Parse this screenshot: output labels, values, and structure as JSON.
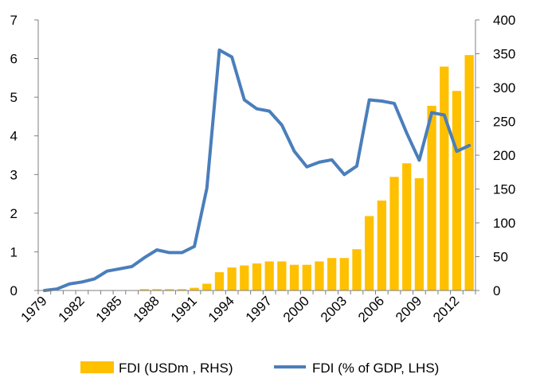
{
  "chart_data": {
    "type": "bar",
    "title": "",
    "x": [
      1979,
      1980,
      1981,
      1982,
      1983,
      1984,
      1985,
      1986,
      1987,
      1988,
      1989,
      1990,
      1991,
      1992,
      1993,
      1994,
      1995,
      1996,
      1997,
      1998,
      1999,
      2000,
      2001,
      2002,
      2003,
      2004,
      2005,
      2006,
      2007,
      2008,
      2009,
      2010,
      2011,
      2012,
      2013
    ],
    "x_tick_labels": [
      "1979",
      "1982",
      "1985",
      "1988",
      "1991",
      "1994",
      "1997",
      "2000",
      "2003",
      "2006",
      "2009",
      "2012"
    ],
    "left_axis": {
      "ylim": [
        0,
        7
      ],
      "ticks": [
        "0",
        "1",
        "2",
        "3",
        "4",
        "5",
        "6",
        "7"
      ]
    },
    "right_axis": {
      "ylim": [
        0,
        400
      ],
      "ticks": [
        "0",
        "50",
        "100",
        "150",
        "200",
        "250",
        "300",
        "350",
        "400"
      ]
    },
    "colors": {
      "bar": "#FFC000",
      "line": "#4A7EBB",
      "axis": "#7f7f7f"
    },
    "legend_position": "bottom",
    "series": [
      {
        "name": "FDI (USDm , RHS)",
        "type": "bar",
        "axis": "right",
        "values": [
          0,
          0,
          0,
          0,
          0,
          0,
          0,
          0,
          2,
          2,
          2,
          2,
          4,
          10,
          27,
          34,
          37,
          40,
          43,
          43,
          38,
          38,
          43,
          48,
          48,
          61,
          110,
          133,
          168,
          188,
          166,
          273,
          331,
          295,
          348
        ]
      },
      {
        "name": "FDI (% of GDP, LHS)",
        "type": "line",
        "axis": "left",
        "values": [
          0.0,
          0.04,
          0.17,
          0.22,
          0.3,
          0.5,
          0.56,
          0.62,
          0.85,
          1.05,
          0.98,
          0.98,
          1.14,
          2.65,
          6.22,
          6.04,
          4.93,
          4.7,
          4.64,
          4.28,
          3.6,
          3.2,
          3.32,
          3.38,
          3.0,
          3.22,
          4.93,
          4.9,
          4.84,
          4.07,
          3.37,
          4.6,
          4.54,
          3.6,
          3.75
        ]
      }
    ]
  }
}
